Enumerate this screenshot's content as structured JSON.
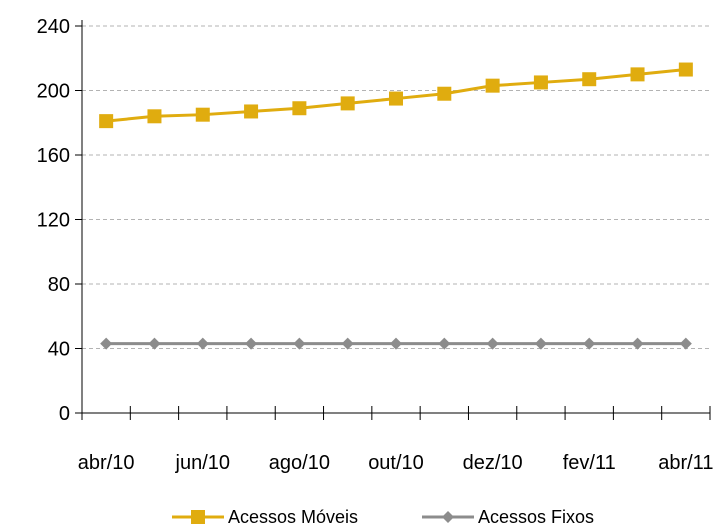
{
  "chart_data": {
    "type": "line",
    "x_tick_labels": [
      "abr/10",
      "jun/10",
      "ago/10",
      "out/10",
      "dez/10",
      "fev/11",
      "abr/11"
    ],
    "x": [
      "abr/10",
      "mai/10",
      "jun/10",
      "jul/10",
      "ago/10",
      "set/10",
      "out/10",
      "nov/10",
      "dez/10",
      "jan/11",
      "fev/11",
      "mar/11",
      "abr/11"
    ],
    "series": [
      {
        "name": "Acessos Móveis",
        "color": "#e0ac0f",
        "marker": "square",
        "values": [
          181,
          184,
          185,
          187,
          189,
          192,
          195,
          198,
          203,
          205,
          207,
          210,
          213
        ]
      },
      {
        "name": "Acessos Fixos",
        "color": "#8c8c8c",
        "marker": "diamond",
        "values": [
          43,
          43,
          43,
          43,
          43,
          43,
          43,
          43,
          43,
          43,
          43,
          43,
          43
        ]
      }
    ],
    "yticks": [
      0,
      40,
      80,
      120,
      160,
      200,
      240
    ],
    "ylim": [
      0,
      240
    ],
    "grid": true,
    "legend_position": "bottom",
    "title": "",
    "xlabel": "",
    "ylabel": ""
  }
}
